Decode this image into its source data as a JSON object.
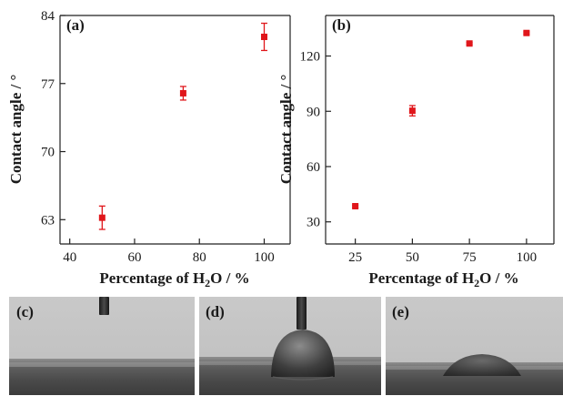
{
  "chart_data": [
    {
      "type": "scatter",
      "panel": "(a)",
      "title": "",
      "xlabel": "Percentage of H₂O / %",
      "ylabel": "Contact angle / °",
      "xlim": [
        37,
        108
      ],
      "ylim": [
        60.5,
        84
      ],
      "xticks": [
        40,
        60,
        80,
        100
      ],
      "yticks": [
        63,
        70,
        77,
        84
      ],
      "grid": false,
      "legend": "none",
      "marker_color": "#e0161b",
      "series": [
        {
          "x": [
            50,
            75,
            100
          ],
          "values": [
            63.2,
            76.0,
            81.8
          ],
          "error": [
            1.2,
            0.7,
            1.4
          ]
        }
      ]
    },
    {
      "type": "scatter",
      "panel": "(b)",
      "title": "",
      "xlabel": "Percentage of H₂O / %",
      "ylabel": "Contact angle / °",
      "xlim": [
        12,
        112
      ],
      "ylim": [
        18,
        142
      ],
      "xticks": [
        25,
        50,
        75,
        100
      ],
      "yticks": [
        30,
        60,
        90,
        120
      ],
      "grid": false,
      "legend": "none",
      "marker_color": "#e0161b",
      "series": [
        {
          "x": [
            25,
            50,
            75,
            100
          ],
          "values": [
            38.5,
            90.3,
            126.8,
            132.5
          ],
          "error": [
            0.6,
            2.8,
            0.6,
            0.6
          ]
        }
      ]
    }
  ],
  "photos": [
    {
      "label": "(c)",
      "content": "needle above substrate, no droplet"
    },
    {
      "label": "(d)",
      "content": "needle touching hemispherical droplet"
    },
    {
      "label": "(e)",
      "content": "flattened droplet on substrate"
    }
  ]
}
